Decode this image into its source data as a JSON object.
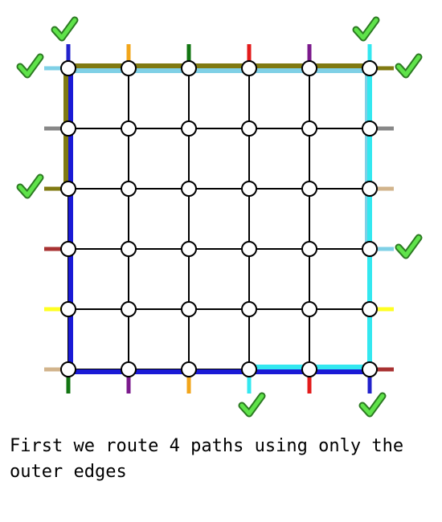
{
  "caption": "First we route 4 paths using only the outer edges",
  "grid": {
    "cols": 6,
    "rows": 6
  },
  "colors": {
    "grid_line": "#000000",
    "node_fill": "#ffffff",
    "node_stroke": "#000000",
    "check": "#5fe34a",
    "check_outline": "#2c7a22"
  },
  "terminals": {
    "top": [
      "#2222cc",
      "#f2a51a",
      "#127512",
      "#e31b1b",
      "#7b1a8c",
      "#33e8f0"
    ],
    "bottom": [
      "#127512",
      "#7b1a8c",
      "#f2a51a",
      "#33e8f0",
      "#e31b1b",
      "#2222cc"
    ],
    "left": [
      "#7fd0e6",
      "#888888",
      "#807a12",
      "#a83232",
      "#ffff22",
      "#d2b48c"
    ],
    "right": [
      "#807a12",
      "#888888",
      "#d2b48c",
      "#7fd0e6",
      "#ffff22",
      "#a83232"
    ]
  },
  "routes": [
    {
      "name": "olive",
      "color": "#807a12",
      "points": [
        [
          0,
          2
        ],
        [
          0,
          0
        ],
        [
          5,
          0
        ]
      ]
    },
    {
      "name": "light-blue",
      "color": "#7fd0e6",
      "points": [
        [
          0,
          0
        ],
        [
          5,
          0
        ],
        [
          5,
          3
        ]
      ]
    },
    {
      "name": "blue",
      "color": "#1a1ad6",
      "points": [
        [
          0,
          0
        ],
        [
          0,
          5
        ],
        [
          5,
          5
        ]
      ]
    },
    {
      "name": "cyan",
      "color": "#33e8f0",
      "points": [
        [
          3,
          5
        ],
        [
          5,
          5
        ],
        [
          5,
          0
        ]
      ]
    }
  ],
  "checks": [
    {
      "side": "top",
      "index": 0
    },
    {
      "side": "top",
      "index": 5
    },
    {
      "side": "left",
      "index": 0
    },
    {
      "side": "left",
      "index": 2
    },
    {
      "side": "right",
      "index": 0
    },
    {
      "side": "right",
      "index": 3
    },
    {
      "side": "bottom",
      "index": 3
    },
    {
      "side": "bottom",
      "index": 5
    }
  ]
}
